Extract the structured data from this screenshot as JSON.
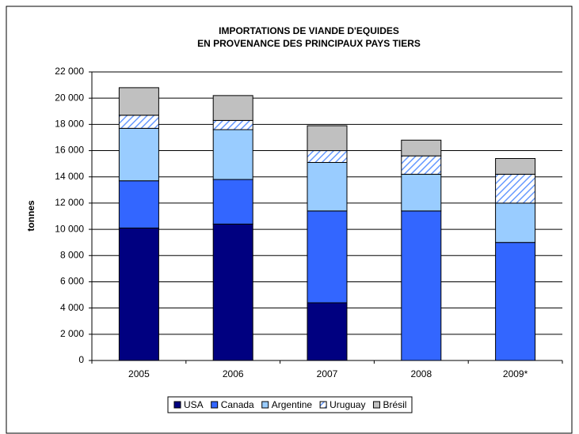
{
  "chart_data": {
    "type": "stacked-bar",
    "title": [
      "IMPORTATIONS DE VIANDE D'EQUIDES",
      "EN PROVENANCE DES PRINCIPAUX PAYS TIERS"
    ],
    "y_label": "tonnes",
    "categories": [
      "2005",
      "2006",
      "2007",
      "2008",
      "2009*"
    ],
    "series": [
      {
        "name": "USA",
        "color": "#000080",
        "values": [
          10100,
          10400,
          4400,
          0,
          0
        ]
      },
      {
        "name": "Canada",
        "color": "#3366ff",
        "values": [
          3600,
          3400,
          7000,
          11400,
          9000
        ]
      },
      {
        "name": "Argentine",
        "color": "#99ccff",
        "values": [
          4000,
          3800,
          3700,
          2800,
          3000
        ]
      },
      {
        "name": "Uruguay",
        "color": "#6699ff",
        "pattern": "hatch",
        "values": [
          1000,
          700,
          900,
          1400,
          2200
        ]
      },
      {
        "name": "Brésil",
        "color": "#c0c0c0",
        "values": [
          2100,
          1900,
          1900,
          1200,
          1200
        ]
      }
    ],
    "ylim": [
      0,
      22000
    ],
    "yticks": [
      0,
      {
        "value": 2000,
        "label": "2 000"
      },
      {
        "value": 4000,
        "label": "4 000"
      },
      {
        "value": 6000,
        "label": "6 000"
      },
      {
        "value": 8000,
        "label": "8 000"
      },
      {
        "value": 10000,
        "label": "10 000"
      },
      {
        "value": 12000,
        "label": "12 000"
      },
      {
        "value": 14000,
        "label": "14 000"
      },
      {
        "value": 16000,
        "label": "16 000"
      },
      {
        "value": 18000,
        "label": "18 000"
      },
      {
        "value": 20000,
        "label": "20 000"
      },
      {
        "value": 22000,
        "label": "22 000"
      }
    ],
    "grid": true,
    "legend": "bottom"
  }
}
